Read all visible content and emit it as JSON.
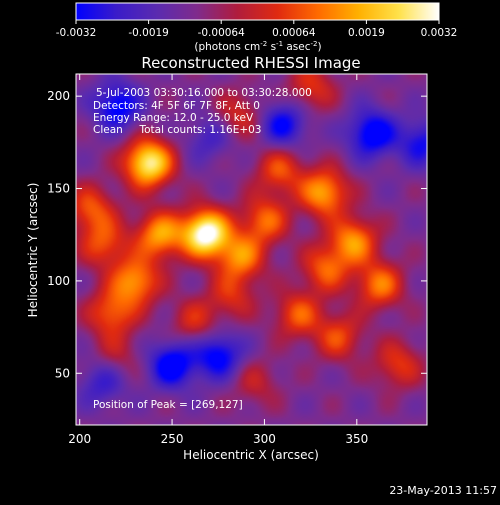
{
  "chart_data": {
    "type": "heatmap",
    "title": "Reconstructed RHESSI Image",
    "xlabel": "Heliocentric X (arcsec)",
    "ylabel": "Heliocentric Y (arcsec)",
    "xlim": [
      198,
      388
    ],
    "ylim": [
      22,
      212
    ],
    "x_ticks": [
      200,
      250,
      300,
      350
    ],
    "y_ticks": [
      50,
      100,
      150,
      200
    ],
    "colorbar": {
      "ticks": [
        "-0.0032",
        "-0.0019",
        "-0.00064",
        "0.00064",
        "0.0019",
        "0.0032"
      ],
      "units_prefix": "(photons cm",
      "units_exp1": "-2",
      "units_mid": " s",
      "units_exp2": "-1",
      "units_mid2": " asec",
      "units_exp3": "-2",
      "units_suffix": ")",
      "colormap": [
        "#0000ff",
        "#3a1cc9",
        "#5a2bb0",
        "#7f2b8c",
        "#b01c3c",
        "#e02a10",
        "#ff6a00",
        "#ffb000",
        "#ffe14a",
        "#ffffff"
      ]
    },
    "annotations": {
      "time": "5-Jul-2003 03:30:16.000 to 03:30:28.000",
      "detectors": "Detectors: 4F 5F 6F 7F 8F, Att 0",
      "energy": "Energy Range: 12.0 - 25.0 keV",
      "clean": "Clean     Total counts: 1.16E+03",
      "peak": "Position of Peak = [269,127]"
    },
    "peak": [
      269,
      127
    ],
    "blobs": [
      {
        "x": 268,
        "y": 126,
        "amp": 1.0
      },
      {
        "x": 237,
        "y": 164,
        "amp": 0.88
      },
      {
        "x": 243,
        "y": 125,
        "amp": 0.6
      },
      {
        "x": 230,
        "y": 100,
        "amp": 0.58
      },
      {
        "x": 217,
        "y": 83,
        "amp": 0.45
      },
      {
        "x": 206,
        "y": 139,
        "amp": 0.42
      },
      {
        "x": 213,
        "y": 120,
        "amp": 0.4
      },
      {
        "x": 287,
        "y": 113,
        "amp": 0.52
      },
      {
        "x": 300,
        "y": 133,
        "amp": 0.46
      },
      {
        "x": 308,
        "y": 160,
        "amp": 0.4
      },
      {
        "x": 332,
        "y": 148,
        "amp": 0.62
      },
      {
        "x": 348,
        "y": 122,
        "amp": 0.56
      },
      {
        "x": 362,
        "y": 98,
        "amp": 0.5
      },
      {
        "x": 333,
        "y": 107,
        "amp": 0.44
      },
      {
        "x": 318,
        "y": 82,
        "amp": 0.42
      },
      {
        "x": 340,
        "y": 70,
        "amp": 0.38
      },
      {
        "x": 372,
        "y": 55,
        "amp": 0.35
      },
      {
        "x": 262,
        "y": 78,
        "amp": 0.3
      },
      {
        "x": 282,
        "y": 92,
        "amp": 0.3
      },
      {
        "x": 286,
        "y": 190,
        "amp": 0.3
      },
      {
        "x": 325,
        "y": 205,
        "amp": 0.34
      },
      {
        "x": 295,
        "y": 45,
        "amp": 0.22
      },
      {
        "x": 220,
        "y": 60,
        "amp": 0.2
      },
      {
        "x": 250,
        "y": 55,
        "amp": -0.55
      },
      {
        "x": 220,
        "y": 195,
        "amp": -0.5
      },
      {
        "x": 275,
        "y": 60,
        "amp": -0.5
      },
      {
        "x": 358,
        "y": 180,
        "amp": -0.55
      },
      {
        "x": 310,
        "y": 185,
        "amp": -0.45
      },
      {
        "x": 212,
        "y": 45,
        "amp": -0.3
      },
      {
        "x": 385,
        "y": 175,
        "amp": -0.4
      },
      {
        "x": 270,
        "y": 178,
        "amp": -0.25
      }
    ],
    "blob_sigma": 9
  },
  "footer": {
    "date": "23-May-2013 11:57"
  }
}
